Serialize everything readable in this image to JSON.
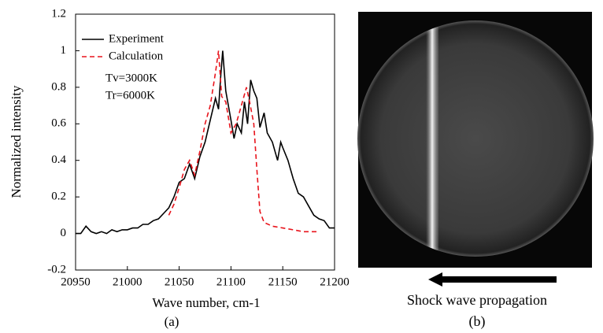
{
  "chart_data": {
    "type": "line",
    "xlabel": "Wave number, cm-1",
    "ylabel": "Normalized intensity",
    "xlim": [
      20950,
      21200
    ],
    "xticks": [
      20950,
      21000,
      21050,
      21100,
      21150,
      21200
    ],
    "ylim": [
      -0.2,
      1.2
    ],
    "yticks": [
      -0.2,
      0,
      0.2,
      0.4,
      0.6,
      0.8,
      1,
      1.2
    ],
    "legend": "upper left",
    "annotations": [
      "Tv=3000K",
      "Tr=6000K"
    ],
    "panel_labels": [
      "(a)",
      "(b)"
    ],
    "image_caption": "Shock wave propagation",
    "series": [
      {
        "name": "Experiment",
        "color": "#000000",
        "dash": false,
        "x": [
          20950,
          20955,
          20960,
          20965,
          20970,
          20975,
          20980,
          20985,
          20990,
          20995,
          21000,
          21005,
          21010,
          21015,
          21020,
          21025,
          21030,
          21035,
          21040,
          21045,
          21050,
          21055,
          21060,
          21065,
          21070,
          21075,
          21080,
          21085,
          21088,
          21090,
          21092,
          21095,
          21100,
          21103,
          21106,
          21110,
          21113,
          21116,
          21119,
          21122,
          21125,
          21128,
          21132,
          21135,
          21140,
          21145,
          21148,
          21150,
          21155,
          21160,
          21165,
          21170,
          21175,
          21180,
          21185,
          21190,
          21195,
          21200
        ],
        "values": [
          0.0,
          0.0,
          0.04,
          0.01,
          0.0,
          0.01,
          0.0,
          0.02,
          0.01,
          0.02,
          0.02,
          0.03,
          0.03,
          0.05,
          0.05,
          0.07,
          0.08,
          0.11,
          0.14,
          0.2,
          0.28,
          0.3,
          0.38,
          0.3,
          0.42,
          0.5,
          0.62,
          0.74,
          0.68,
          0.85,
          1.0,
          0.78,
          0.62,
          0.52,
          0.6,
          0.55,
          0.72,
          0.6,
          0.84,
          0.78,
          0.74,
          0.58,
          0.66,
          0.55,
          0.5,
          0.4,
          0.5,
          0.47,
          0.4,
          0.3,
          0.22,
          0.2,
          0.15,
          0.1,
          0.08,
          0.07,
          0.03,
          0.03
        ]
      },
      {
        "name": "Calculation",
        "color": "#e8141c",
        "dash": true,
        "x": [
          21040,
          21045,
          21050,
          21055,
          21060,
          21065,
          21070,
          21075,
          21080,
          21085,
          21088,
          21091,
          21095,
          21100,
          21105,
          21110,
          21115,
          21118,
          21122,
          21125,
          21128,
          21132,
          21140,
          21150,
          21160,
          21170,
          21185
        ],
        "values": [
          0.1,
          0.16,
          0.25,
          0.35,
          0.4,
          0.32,
          0.45,
          0.6,
          0.7,
          0.88,
          1.0,
          0.75,
          0.72,
          0.55,
          0.6,
          0.7,
          0.8,
          0.72,
          0.6,
          0.35,
          0.12,
          0.06,
          0.04,
          0.03,
          0.02,
          0.01,
          0.01
        ]
      }
    ]
  }
}
